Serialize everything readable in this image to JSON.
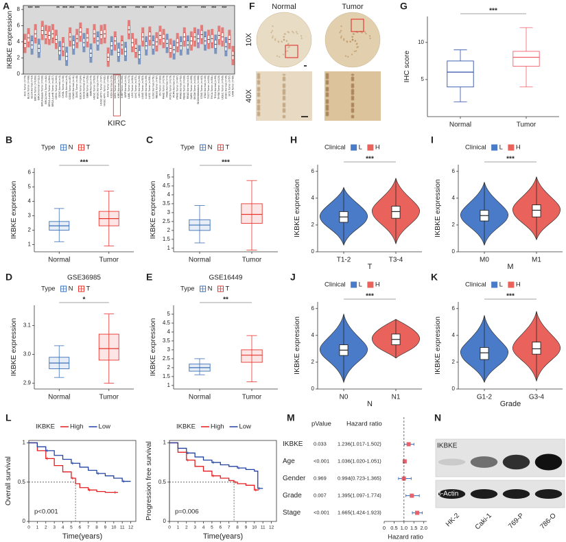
{
  "chart_data": [
    {
      "panel": "A",
      "type": "strip",
      "ylabel": "IKBKE expression",
      "ylim": [
        0,
        8.5
      ],
      "yticks": [
        0,
        2,
        4,
        6,
        8
      ],
      "tumor_color": "#e8322b",
      "normal_color": "#2e5daa",
      "metastasis_color": "#7b4fa0",
      "highlight": "KIRC",
      "categories": [
        "ACC.Tumor (n=79)",
        "BLCA.Tumor (n=408)",
        "BLCA.Normal (n=19)",
        "BRCA.Tumor (n=1093)",
        "BRCA.Normal (n=112)",
        "BRCA-Basal.Tumor (n=190)",
        "BRCA-Her2.Tumor (n=82)",
        "BRCA-LumA.Tumor (n=564)",
        "BRCA-LumB.Tumor (n=217)",
        "CESC.Tumor (n=304)",
        "CESC.Normal (n=3)",
        "CHOL.Tumor (n=36)",
        "CHOL.Normal (n=9)",
        "COAD.Tumor (n=457)",
        "COAD.Normal (n=41)",
        "DLBC.Tumor (n=48)",
        "ESCA.Tumor (n=184)",
        "ESCA.Normal (n=11)",
        "GBM.Tumor (n=153)",
        "GBM.Normal (n=5)",
        "HNSC.Tumor (n=520)",
        "HNSC.Normal (n=44)",
        "HNSC-HPV+.Tumor (n=97)",
        "HNSC-HPV-.Tumor (n=421)",
        "KICH.Tumor (n=66)",
        "KICH.Normal (n=25)",
        "KIRC.Tumor (n=533)",
        "KIRC.Normal (n=72)",
        "KIRP.Tumor (n=290)",
        "KIRP.Normal (n=32)",
        "LAML.Tumor (n=173)",
        "LGG.Tumor (n=516)",
        "LIHC.Tumor (n=371)",
        "LIHC.Normal (n=50)",
        "LUAD.Tumor (n=515)",
        "LUAD.Normal (n=59)",
        "LUSC.Tumor (n=501)",
        "LUSC.Normal (n=51)",
        "MESO.Tumor (n=87)",
        "OV.Tumor (n=303)",
        "PAAD.Tumor (n=178)",
        "PAAD.Normal (n=4)",
        "PCPG.Tumor (n=179)",
        "PCPG.Normal (n=3)",
        "PRAD.Tumor (n=497)",
        "PRAD.Normal (n=52)",
        "READ.Tumor (n=166)",
        "READ.Normal (n=10)",
        "SARC.Tumor (n=259)",
        "SKCM.Tumor (n=103)",
        "SKCM.Metastasis (n=368)",
        "STAD.Tumor (n=415)",
        "STAD.Normal (n=35)",
        "TGCT.Tumor (n=150)",
        "THCA.Tumor (n=501)",
        "THCA.Normal (n=59)",
        "THYM.Tumor (n=120)",
        "UCEC.Tumor (n=545)",
        "UCEC.Normal (n=35)",
        "UCS.Tumor (n=57)",
        "UVM.Tumor (n=80)"
      ],
      "values": [
        3.8,
        4.5,
        3.6,
        5.0,
        3.2,
        5.4,
        4.9,
        4.8,
        5.0,
        4.3,
        2.9,
        3.4,
        2.2,
        4.6,
        3.6,
        4.4,
        5.2,
        3.9,
        4.5,
        2.6,
        5.0,
        4.1,
        4.9,
        5.0,
        2.1,
        3.5,
        4.1,
        2.7,
        3.6,
        2.8,
        5.5,
        3.9,
        3.2,
        2.4,
        4.6,
        3.5,
        4.7,
        3.6,
        4.0,
        4.8,
        4.4,
        3.8,
        3.2,
        3.0,
        3.9,
        3.5,
        4.6,
        3.6,
        4.1,
        4.6,
        4.4,
        4.9,
        4.1,
        4.3,
        4.4,
        3.7,
        4.8,
        4.6,
        3.4,
        4.3,
        2.3
      ],
      "significance": [
        null,
        "***",
        null,
        "***",
        null,
        null,
        null,
        null,
        null,
        "**",
        null,
        "***",
        null,
        "***",
        null,
        null,
        "***",
        null,
        "***",
        null,
        "***",
        null,
        null,
        null,
        "***",
        null,
        "***",
        null,
        "***",
        null,
        null,
        null,
        "***",
        null,
        "***",
        null,
        "***",
        null,
        null,
        null,
        "*",
        null,
        null,
        null,
        "***",
        null,
        "**",
        null,
        null,
        null,
        null,
        "***",
        null,
        null,
        "***",
        null,
        null,
        "***",
        null,
        null,
        null
      ]
    },
    {
      "panel": "B",
      "type": "box",
      "ylabel": "IKBKE expression",
      "legend_title": "Type",
      "significance": "***",
      "categories": [
        "Normal",
        "Tumor"
      ],
      "series": [
        {
          "name": "N",
          "color": "#3b6fb6"
        },
        {
          "name": "T",
          "color": "#e8322b"
        }
      ],
      "boxes": [
        {
          "min": 1.2,
          "q1": 2.0,
          "median": 2.3,
          "q3": 2.6,
          "max": 3.5
        },
        {
          "min": 0.9,
          "q1": 2.3,
          "median": 2.8,
          "q3": 3.3,
          "max": 4.7
        }
      ],
      "ylim": [
        0.5,
        6.3
      ],
      "yticks": [
        1,
        2,
        3,
        4,
        5,
        6
      ]
    },
    {
      "panel": "C",
      "type": "box",
      "ylabel": "IKBKE expression",
      "legend_title": "Type",
      "significance": "***",
      "categories": [
        "Normal",
        "Tumor"
      ],
      "series": [
        {
          "name": "N",
          "color": "#3b6fb6"
        },
        {
          "name": "T",
          "color": "#e8322b"
        }
      ],
      "boxes": [
        {
          "min": 1.3,
          "q1": 2.0,
          "median": 2.3,
          "q3": 2.6,
          "max": 3.4
        },
        {
          "min": 0.9,
          "q1": 2.4,
          "median": 2.9,
          "q3": 3.5,
          "max": 4.8
        }
      ],
      "ylim": [
        0.8,
        5.5
      ],
      "yticks": [
        1,
        1.5,
        2,
        2.5,
        3,
        3.5,
        4,
        4.5,
        5
      ]
    },
    {
      "panel": "D",
      "type": "box",
      "title": "GSE36985",
      "ylabel": "IKBKE expression",
      "legend_title": "Type",
      "significance": "*",
      "categories": [
        "Normal",
        "Tumor"
      ],
      "series": [
        {
          "name": "N",
          "color": "#3b6fb6"
        },
        {
          "name": "T",
          "color": "#e8322b"
        }
      ],
      "boxes": [
        {
          "min": 2.92,
          "q1": 2.95,
          "median": 2.97,
          "q3": 2.99,
          "max": 3.03
        },
        {
          "min": 2.9,
          "q1": 2.98,
          "median": 3.02,
          "q3": 3.07,
          "max": 3.14
        }
      ],
      "ylim": [
        2.88,
        3.17
      ],
      "yticks": [
        2.9,
        {
          "value": 3,
          "label": "3.0"
        },
        3.1
      ]
    },
    {
      "panel": "E",
      "type": "box",
      "title": "GSE16449",
      "ylabel": "IKBKE expression",
      "legend_title": "Type",
      "significance": "**",
      "categories": [
        "Normal",
        "Tumor"
      ],
      "series": [
        {
          "name": "N",
          "color": "#3b6fb6"
        },
        {
          "name": "T",
          "color": "#e8322b"
        }
      ],
      "boxes": [
        {
          "min": 1.6,
          "q1": 1.8,
          "median": 2.0,
          "q3": 2.2,
          "max": 2.5
        },
        {
          "min": 1.2,
          "q1": 2.3,
          "median": 2.7,
          "q3": 3.0,
          "max": 3.8
        }
      ],
      "ylim": [
        0.8,
        5.5
      ],
      "yticks": [
        1,
        1.5,
        2,
        2.5,
        3,
        3.5,
        4,
        4.5,
        5
      ]
    },
    {
      "panel": "F",
      "type": "image",
      "columns": [
        "Normal",
        "Tumor"
      ],
      "rows": [
        "10X",
        "40X"
      ]
    },
    {
      "panel": "G",
      "type": "box",
      "ylabel": "IHC score",
      "significance": "***",
      "categories": [
        "Normal",
        "Tumor"
      ],
      "series": [
        {
          "name": "Normal",
          "color": "#2e4fa8"
        },
        {
          "name": "Tumor",
          "color": "#f0606a"
        }
      ],
      "boxes": [
        {
          "min": 2,
          "q1": 4,
          "median": 6,
          "q3": 7.5,
          "max": 9
        },
        {
          "min": 4,
          "q1": 6.8,
          "median": 8,
          "q3": 8.8,
          "max": 12
        }
      ],
      "ylim": [
        0,
        13.5
      ],
      "yticks": [
        5,
        10
      ]
    },
    {
      "panel": "H",
      "type": "violin",
      "ylabel": "IKBKE expression",
      "xlabel": "T",
      "legend_title": "Clinical",
      "significance": "***",
      "categories": [
        "T1-2",
        "T3-4"
      ],
      "series": [
        {
          "name": "L",
          "color": "#4a7bc8"
        },
        {
          "name": "H",
          "color": "#e9635c"
        }
      ],
      "boxes": [
        {
          "min": 0.5,
          "q1": 2.2,
          "median": 2.6,
          "q3": 3.0,
          "max": 4.8
        },
        {
          "min": 0.6,
          "q1": 2.5,
          "median": 3.0,
          "q3": 3.4,
          "max": 5.5
        }
      ],
      "ylim": [
        0,
        6.5
      ],
      "yticks": [
        0,
        2,
        4,
        6
      ]
    },
    {
      "panel": "I",
      "type": "violin",
      "ylabel": "IKBKE expression",
      "xlabel": "M",
      "legend_title": "Clinical",
      "significance": "***",
      "categories": [
        "M0",
        "M1"
      ],
      "series": [
        {
          "name": "L",
          "color": "#4a7bc8"
        },
        {
          "name": "H",
          "color": "#e9635c"
        }
      ],
      "boxes": [
        {
          "min": 0.5,
          "q1": 2.3,
          "median": 2.7,
          "q3": 3.1,
          "max": 5.2
        },
        {
          "min": 0.9,
          "q1": 2.6,
          "median": 3.1,
          "q3": 3.5,
          "max": 5.6
        }
      ],
      "ylim": [
        0,
        6.5
      ],
      "yticks": [
        0,
        2,
        4,
        6
      ]
    },
    {
      "panel": "J",
      "type": "violin",
      "ylabel": "IKBKE expression",
      "xlabel": "N",
      "legend_title": "Clinical",
      "significance": "***",
      "categories": [
        "N0",
        "N1"
      ],
      "series": [
        {
          "name": "L",
          "color": "#4a7bc8"
        },
        {
          "name": "H",
          "color": "#e9635c"
        }
      ],
      "boxes": [
        {
          "min": 0.5,
          "q1": 2.5,
          "median": 2.9,
          "q3": 3.3,
          "max": 5.6
        },
        {
          "min": 2.3,
          "q1": 3.3,
          "median": 3.7,
          "q3": 4.1,
          "max": 5.2
        }
      ],
      "ylim": [
        0,
        6.5
      ],
      "yticks": [
        0,
        2,
        4,
        6
      ]
    },
    {
      "panel": "K",
      "type": "violin",
      "ylabel": "IKBKE expression",
      "xlabel": "Grade",
      "legend_title": "Clinical",
      "significance": "***",
      "categories": [
        "G1-2",
        "G3-4"
      ],
      "series": [
        {
          "name": "L",
          "color": "#4a7bc8"
        },
        {
          "name": "H",
          "color": "#e9635c"
        }
      ],
      "boxes": [
        {
          "min": 0.5,
          "q1": 2.2,
          "median": 2.7,
          "q3": 3.1,
          "max": 5.5
        },
        {
          "min": 0.6,
          "q1": 2.6,
          "median": 3.0,
          "q3": 3.5,
          "max": 5.8
        }
      ],
      "ylim": [
        0,
        6.5
      ],
      "yticks": [
        0,
        2,
        4,
        6
      ]
    },
    {
      "panel": "L",
      "type": "km",
      "ylabel": "Overall survival",
      "xlabel": "Time(years)",
      "legend_title": "IKBKE",
      "annotation": "p<0.001",
      "median_line": 0.5,
      "xlim": [
        0,
        12.6
      ],
      "xticks": [
        0,
        1,
        2,
        3,
        4,
        5,
        6,
        7,
        8,
        9,
        10,
        11,
        12
      ],
      "ylim": [
        0,
        1.03
      ],
      "yticks": [
        0,
        0.5,
        1
      ],
      "series": [
        {
          "name": "High",
          "color": "#e41a1c",
          "x": [
            0,
            1,
            2,
            3,
            4,
            5,
            5.5,
            6,
            7,
            8,
            9,
            10,
            10.5
          ],
          "y": [
            1,
            0.9,
            0.8,
            0.71,
            0.63,
            0.55,
            0.48,
            0.43,
            0.4,
            0.38,
            0.37,
            0.37,
            0.37
          ]
        },
        {
          "name": "Low",
          "color": "#2040a0",
          "x": [
            0,
            1,
            2,
            3,
            4,
            5,
            6,
            7,
            8,
            9,
            10,
            11,
            12
          ],
          "y": [
            1,
            0.95,
            0.9,
            0.84,
            0.79,
            0.74,
            0.69,
            0.65,
            0.61,
            0.58,
            0.55,
            0.51,
            0.51
          ]
        }
      ]
    },
    {
      "type": "km",
      "ylabel": "Progression free survival",
      "xlabel": "Time(years)",
      "legend_title": "IKBKE",
      "annotation": "p=0.006",
      "median_line": 0.5,
      "xlim": [
        0,
        12.6
      ],
      "xticks": [
        0,
        1,
        2,
        3,
        4,
        5,
        6,
        7,
        8,
        9,
        10,
        11,
        12
      ],
      "ylim": [
        0,
        1.03
      ],
      "yticks": [
        0,
        0.5,
        1
      ],
      "series": [
        {
          "name": "High",
          "color": "#e41a1c",
          "x": [
            0,
            1,
            2,
            3,
            4,
            5,
            6,
            7,
            7.6,
            8,
            9,
            10,
            10.5
          ],
          "y": [
            1,
            0.88,
            0.78,
            0.7,
            0.64,
            0.58,
            0.55,
            0.52,
            0.5,
            0.48,
            0.46,
            0.4,
            0.4
          ]
        },
        {
          "name": "Low",
          "color": "#2040a0",
          "x": [
            0,
            1,
            2,
            3,
            4,
            5,
            6,
            7,
            8,
            9,
            10,
            10.4,
            11
          ],
          "y": [
            1,
            0.93,
            0.87,
            0.82,
            0.78,
            0.75,
            0.72,
            0.7,
            0.68,
            0.66,
            0.64,
            0.42,
            0.42
          ]
        }
      ]
    },
    {
      "panel": "M",
      "type": "forest",
      "headers": [
        "pValue",
        "Hazard ratio"
      ],
      "xlabel": "Hazard ratio",
      "reference_line": 1,
      "color": "#e8606a",
      "xlim": [
        0,
        2.15
      ],
      "xticks": [
        0,
        0.5,
        {
          "value": 1,
          "label": "1.0"
        },
        1.5,
        {
          "value": 2,
          "label": "2.0"
        }
      ],
      "rows": [
        {
          "name": "IKBKE",
          "pvalue": 0.033,
          "label": "1.236(1.017-1.502)",
          "hr": 1.236,
          "lo": 1.017,
          "hi": 1.502
        },
        {
          "name": "Age",
          "pvalue": "<0.001",
          "label": "1.036(1.020-1.051)",
          "hr": 1.036,
          "lo": 1.02,
          "hi": 1.051
        },
        {
          "name": "Gender",
          "pvalue": 0.969,
          "label": "0.994(0.723-1.365)",
          "hr": 0.994,
          "lo": 0.723,
          "hi": 1.365
        },
        {
          "name": "Grade",
          "pvalue": 0.007,
          "label": "1.395(1.097-1.774)",
          "hr": 1.395,
          "lo": 1.097,
          "hi": 1.774
        },
        {
          "name": "Stage",
          "pvalue": "<0.001",
          "label": "1.665(1.424-1.923)",
          "hr": 1.665,
          "lo": 1.424,
          "hi": 1.923
        }
      ]
    },
    {
      "panel": "N",
      "type": "blot",
      "proteins": [
        "IKBKE",
        "β-Actin"
      ],
      "lanes": [
        "HK-2",
        "Caki-1",
        "769-P",
        "786-O"
      ],
      "intensity": [
        [
          0.12,
          0.55,
          0.85,
          1
        ],
        [
          0.95,
          0.95,
          0.95,
          0.95
        ]
      ]
    }
  ]
}
